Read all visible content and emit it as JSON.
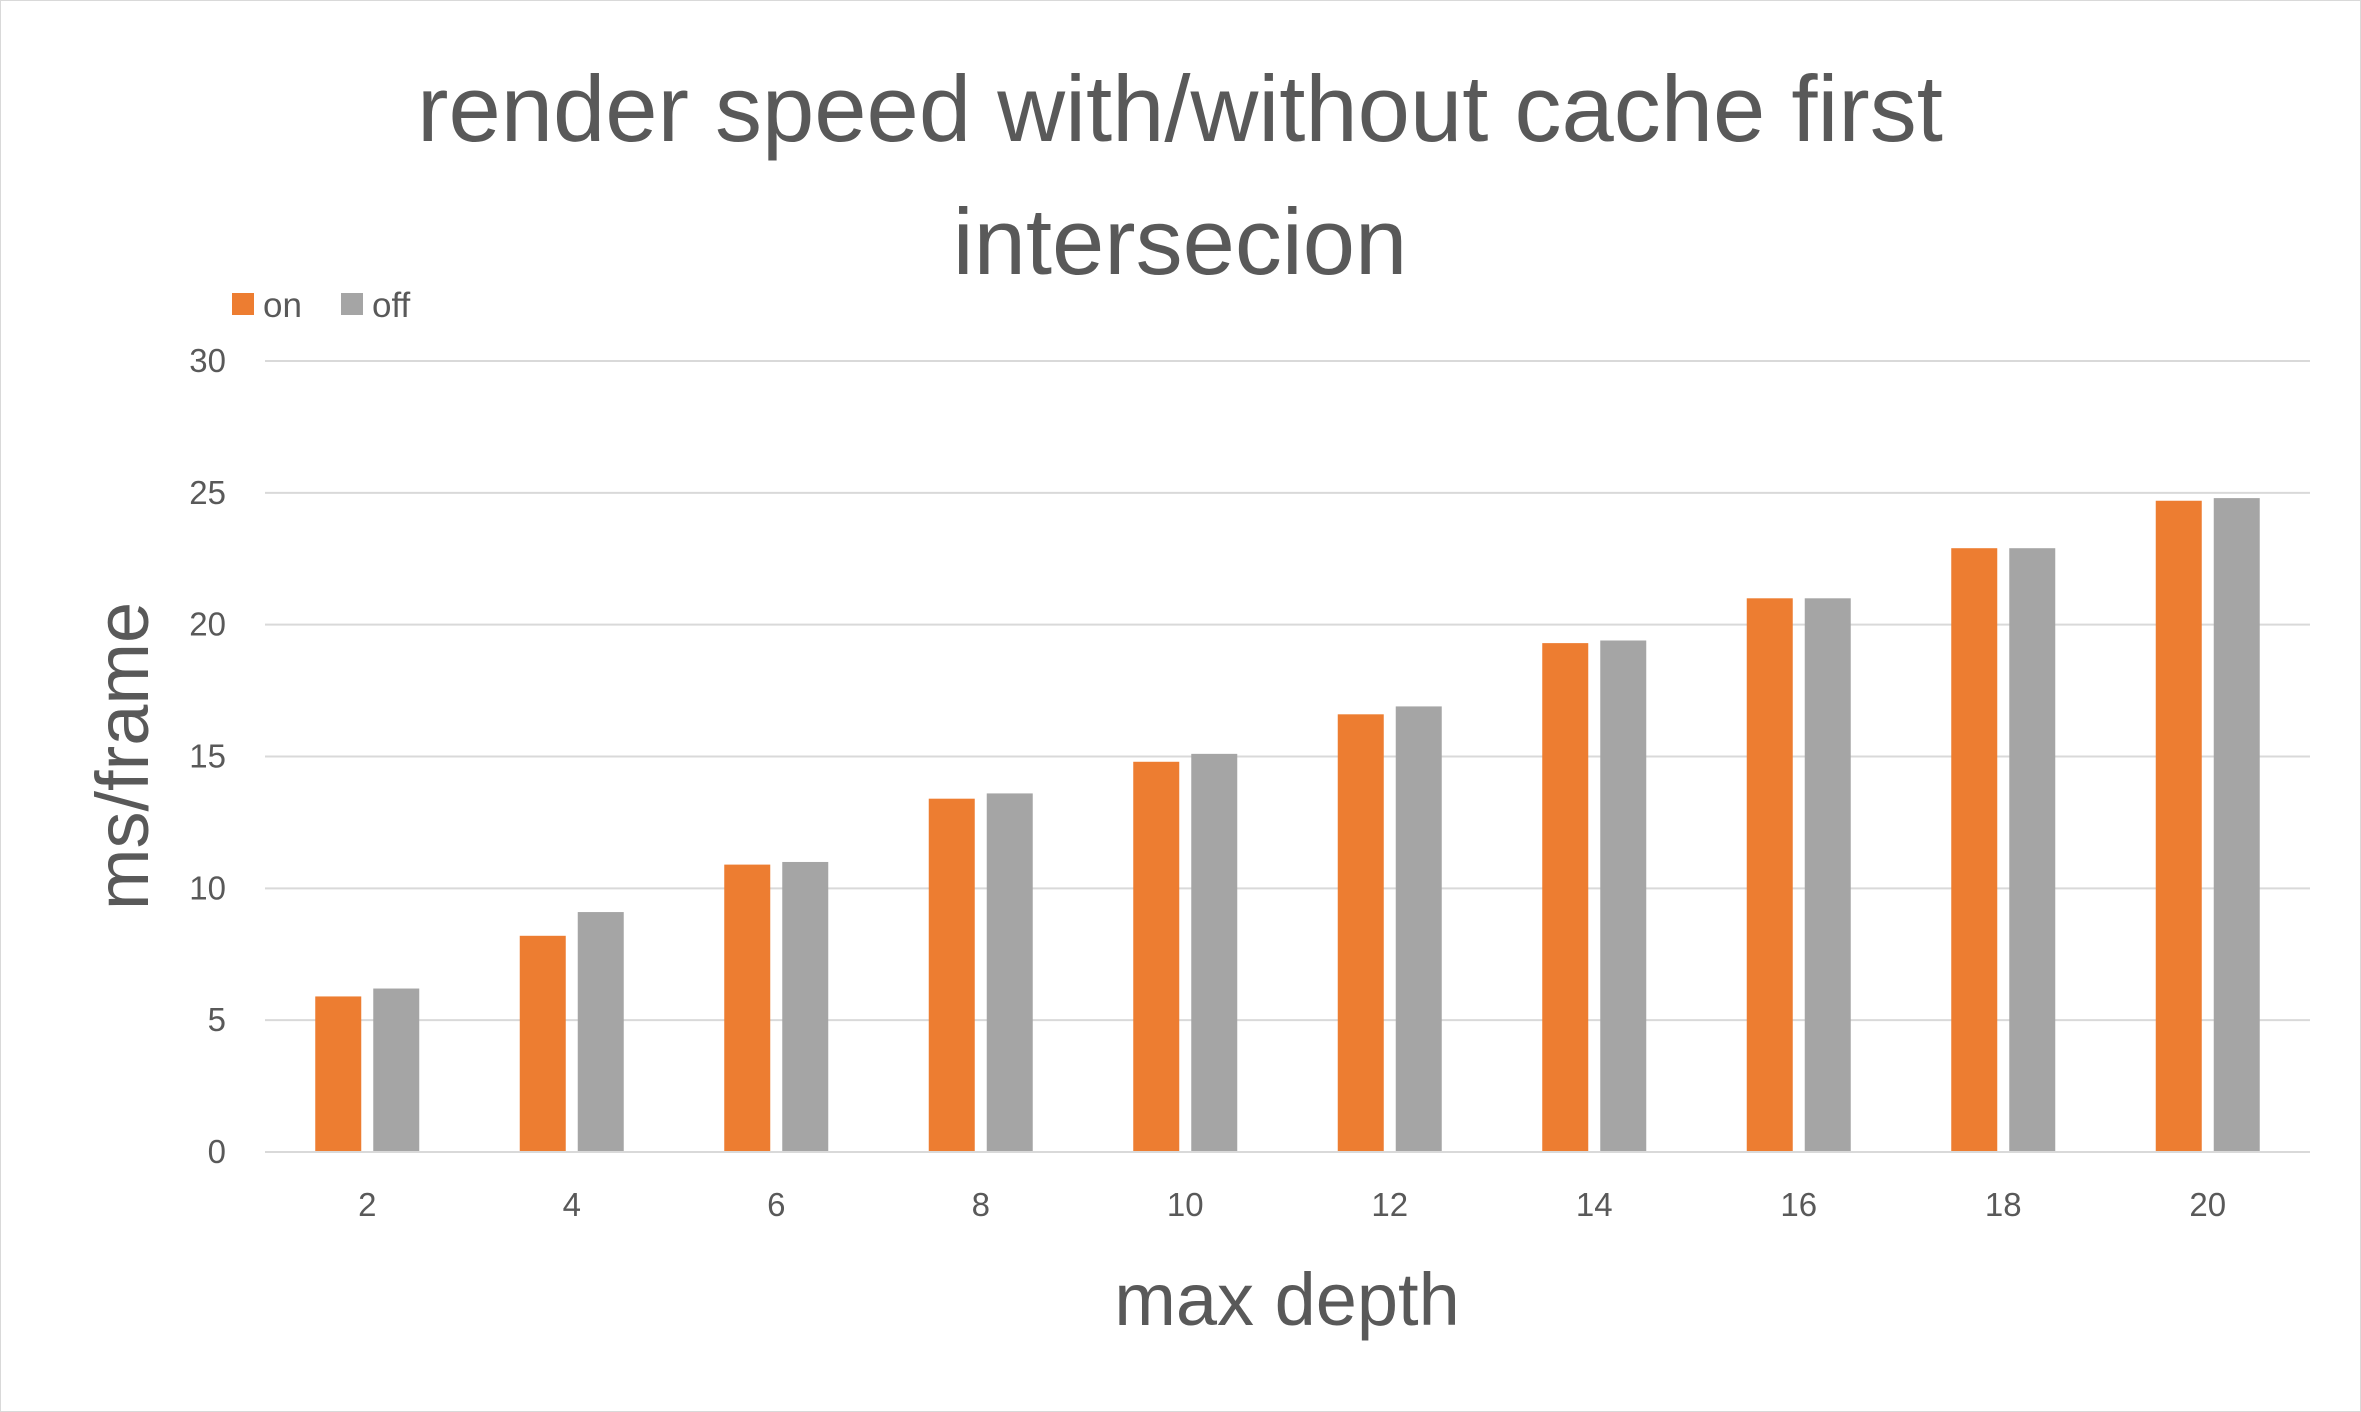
{
  "chart_data": {
    "type": "bar",
    "title_lines": [
      "render speed with/without cache first",
      "intersecion"
    ],
    "xlabel": "max depth",
    "ylabel": "ms/frame",
    "categories": [
      "2",
      "4",
      "6",
      "8",
      "10",
      "12",
      "14",
      "16",
      "18",
      "20"
    ],
    "series": [
      {
        "name": "on",
        "color": "#ed7d31",
        "values": [
          5.9,
          8.2,
          10.9,
          13.4,
          14.8,
          16.6,
          19.3,
          21.0,
          22.9,
          24.7
        ]
      },
      {
        "name": "off",
        "color": "#a5a5a5",
        "values": [
          6.2,
          9.1,
          11.0,
          13.6,
          15.1,
          16.9,
          19.4,
          21.0,
          22.9,
          24.8
        ]
      }
    ],
    "ylim": [
      0,
      30
    ],
    "yticks": [
      "0",
      "5",
      "10",
      "15",
      "20",
      "25",
      "30"
    ],
    "grid": true,
    "legend_position": "top-left"
  }
}
